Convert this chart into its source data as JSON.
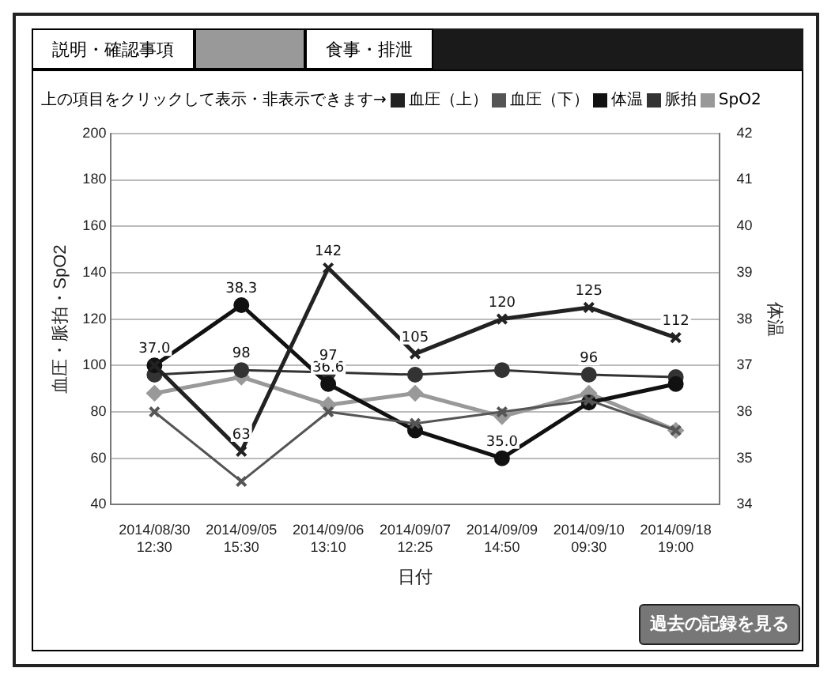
{
  "chart_data": {
    "type": "line",
    "annotations": [
      "説明・確認事項",
      "食事・排泄",
      "上の項目をクリックして表示・非表示できます→",
      "過去の記録を見る"
    ],
    "xlabel": "日付",
    "ylabel": "血圧・脈拍・SpO2",
    "y2label": "体温",
    "categories": [
      "2014/08/30 12:30",
      "2014/09/05 15:30",
      "2014/09/06 13:10",
      "2014/09/07 12:25",
      "2014/09/09 14:50",
      "2014/09/10 09:30",
      "2014/09/18 19:00"
    ],
    "series": [
      {
        "name": "血圧（上）",
        "color": "#222222",
        "marker": "cross",
        "values": [
          100,
          63,
          142,
          105,
          120,
          125,
          112
        ],
        "value_labels": [
          null,
          "63",
          "142",
          "105",
          "120",
          "125",
          "112"
        ]
      },
      {
        "name": "血圧（下）",
        "color": "#555555",
        "marker": "cross",
        "values": [
          80,
          50,
          80,
          75,
          80,
          85,
          72
        ]
      },
      {
        "name": "体温",
        "color": "#111111",
        "marker": "circle",
        "axis": "y2",
        "values": [
          37.0,
          38.3,
          36.6,
          35.6,
          35.0,
          36.2,
          36.6
        ],
        "value_labels": [
          "37.0",
          "38.3",
          "36.6",
          null,
          "35.0",
          null,
          null
        ]
      },
      {
        "name": "脈拍",
        "color": "#333333",
        "marker": "circle",
        "values": [
          96,
          98,
          97,
          96,
          98,
          96,
          95
        ],
        "value_labels": [
          null,
          "98",
          "97",
          null,
          null,
          "96",
          null
        ]
      },
      {
        "name": "SpO2",
        "color": "#999999",
        "marker": "diamond",
        "values": [
          88,
          95,
          83,
          88,
          78,
          88,
          72
        ]
      }
    ],
    "ylim": [
      40,
      200
    ],
    "yticks": [
      40,
      60,
      80,
      100,
      120,
      140,
      160,
      180,
      200
    ],
    "y2lim": [
      34,
      42
    ],
    "y2ticks": [
      34,
      35,
      36,
      37,
      38,
      39,
      40,
      41,
      42
    ],
    "grid": "y",
    "legend": "top"
  }
}
